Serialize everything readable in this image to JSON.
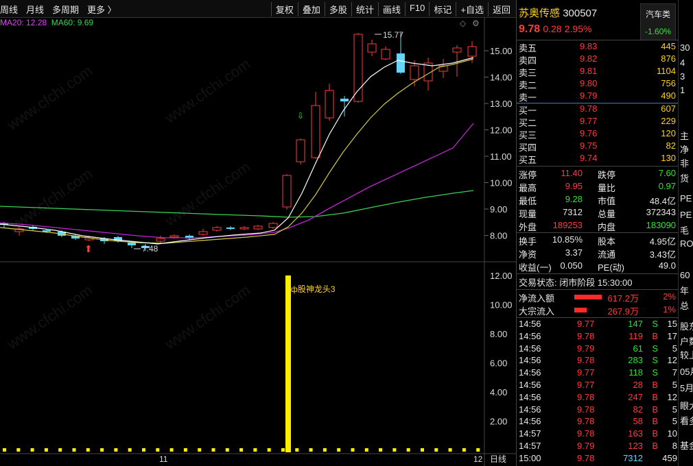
{
  "toolbar": {
    "tabs": [
      "周线",
      "月线",
      "多周期",
      "更多 〉"
    ],
    "buttons": [
      "复权",
      "叠加",
      "多股",
      "统计",
      "画线",
      "F10",
      "标记",
      "+自选",
      "返回"
    ]
  },
  "ma_legend": {
    "ma20": "MA20: 12.28",
    "ma60": "MA60: 9.69"
  },
  "kline": {
    "y_labels": [
      "15.00",
      "14.00",
      "13.00",
      "12.00",
      "11.00",
      "10.00",
      "9.00",
      "8.00"
    ],
    "high_label": "15.77",
    "low_label": "7.48",
    "x_labels": [
      "11",
      "12"
    ],
    "period_label": "日线"
  },
  "volume": {
    "y_labels": [
      "12.00",
      "10.00",
      "8.00",
      "6.00",
      "4.00",
      "2.00"
    ],
    "signal_label": "股神龙头3"
  },
  "stock": {
    "name": "苏奥传感",
    "code": "300507",
    "price": "9.78",
    "change": "0.28",
    "change_pct": "2.95%",
    "sector": "汽车类",
    "sector_pct": "-1.60%"
  },
  "asks": [
    {
      "label": "卖五",
      "price": "9.83",
      "vol": "445"
    },
    {
      "label": "卖四",
      "price": "9.82",
      "vol": "876"
    },
    {
      "label": "卖三",
      "price": "9.81",
      "vol": "1104"
    },
    {
      "label": "卖二",
      "price": "9.80",
      "vol": "756"
    },
    {
      "label": "卖一",
      "price": "9.79",
      "vol": "490"
    }
  ],
  "bids": [
    {
      "label": "买一",
      "price": "9.78",
      "vol": "607"
    },
    {
      "label": "买二",
      "price": "9.77",
      "vol": "229"
    },
    {
      "label": "买三",
      "price": "9.76",
      "vol": "120"
    },
    {
      "label": "买四",
      "price": "9.75",
      "vol": "82"
    },
    {
      "label": "买五",
      "price": "9.74",
      "vol": "130"
    }
  ],
  "stats": [
    {
      "l1": "涨停",
      "v1": "11.40",
      "c1": "red",
      "l2": "跌停",
      "v2": "7.60",
      "c2": "green"
    },
    {
      "l1": "最高",
      "v1": "9.95",
      "c1": "red",
      "l2": "量比",
      "v2": "0.97",
      "c2": "green"
    },
    {
      "l1": "最低",
      "v1": "9.28",
      "c1": "green",
      "l2": "市值",
      "v2": "48.4亿",
      "c2": "white"
    },
    {
      "l1": "现量",
      "v1": "7312",
      "c1": "white",
      "l2": "总量",
      "v2": "372343",
      "c2": "white"
    },
    {
      "l1": "外盘",
      "v1": "189253",
      "c1": "red",
      "l2": "内盘",
      "v2": "183090",
      "c2": "green"
    }
  ],
  "stats2": [
    {
      "l1": "换手",
      "v1": "10.85%",
      "l2": "股本",
      "v2": "4.95亿"
    },
    {
      "l1": "净资",
      "v1": "3.37",
      "l2": "流通",
      "v2": "3.43亿"
    },
    {
      "l1": "收益(一)",
      "v1": "0.050",
      "l2": "PE(动)",
      "v2": "49.0"
    }
  ],
  "trade_status": "交易状态: 闭市阶段 15:30:00",
  "flows": [
    {
      "label": "净流入额",
      "value": "617.2万",
      "pct": "2%",
      "bar": 0.9
    },
    {
      "label": "大宗流入",
      "value": "267.9万",
      "pct": "1%",
      "bar": 0.4
    }
  ],
  "ticks": [
    {
      "t": "14:56",
      "p": "9.77",
      "v": "147",
      "d": "S",
      "n": "15"
    },
    {
      "t": "14:56",
      "p": "9.78",
      "v": "119",
      "d": "B",
      "n": "17"
    },
    {
      "t": "14:56",
      "p": "9.79",
      "v": "61",
      "d": "S",
      "n": "5"
    },
    {
      "t": "14:56",
      "p": "9.78",
      "v": "283",
      "d": "S",
      "n": "12"
    },
    {
      "t": "14:56",
      "p": "9.77",
      "v": "118",
      "d": "S",
      "n": "7"
    },
    {
      "t": "14:56",
      "p": "9.77",
      "v": "28",
      "d": "B",
      "n": "5"
    },
    {
      "t": "14:56",
      "p": "9.78",
      "v": "247",
      "d": "B",
      "n": "12"
    },
    {
      "t": "14:56",
      "p": "9.78",
      "v": "82",
      "d": "B",
      "n": "5"
    },
    {
      "t": "14:56",
      "p": "9.78",
      "v": "58",
      "d": "B",
      "n": "5"
    },
    {
      "t": "14:57",
      "p": "9.78",
      "v": "163",
      "d": "B",
      "n": "10"
    },
    {
      "t": "14:57",
      "p": "9.79",
      "v": "123",
      "d": "B",
      "n": "8"
    },
    {
      "t": "15:00",
      "p": "9.78",
      "v": "7312",
      "d": "",
      "n": "459"
    }
  ],
  "far_right": [
    "30",
    "4",
    "3",
    "1",
    "主",
    "净",
    "非",
    "货",
    "PE",
    "PE",
    "毛",
    "RO",
    "60",
    "年",
    "总",
    "股东",
    "户数",
    "较上",
    "05月",
    "5月",
    "眼大",
    "看多",
    "基金"
  ],
  "watermark": "www.cfchi.com"
}
